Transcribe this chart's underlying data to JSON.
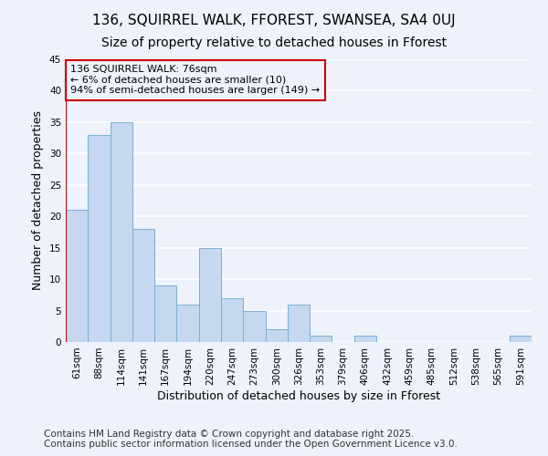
{
  "title_line1": "136, SQUIRREL WALK, FFOREST, SWANSEA, SA4 0UJ",
  "title_line2": "Size of property relative to detached houses in Fforest",
  "xlabel": "Distribution of detached houses by size in Fforest",
  "ylabel": "Number of detached properties",
  "categories": [
    "61sqm",
    "88sqm",
    "114sqm",
    "141sqm",
    "167sqm",
    "194sqm",
    "220sqm",
    "247sqm",
    "273sqm",
    "300sqm",
    "326sqm",
    "353sqm",
    "379sqm",
    "406sqm",
    "432sqm",
    "459sqm",
    "485sqm",
    "512sqm",
    "538sqm",
    "565sqm",
    "591sqm"
  ],
  "values": [
    21,
    33,
    35,
    18,
    9,
    6,
    15,
    7,
    5,
    2,
    6,
    1,
    0,
    1,
    0,
    0,
    0,
    0,
    0,
    0,
    1
  ],
  "bar_color": "#c5d8ef",
  "bar_edge_color": "#7bafd4",
  "highlight_color": "#cc0000",
  "annotation_text": "136 SQUIRREL WALK: 76sqm\n← 6% of detached houses are smaller (10)\n94% of semi-detached houses are larger (149) →",
  "annotation_box_color": "#cc0000",
  "ylim": [
    0,
    45
  ],
  "yticks": [
    0,
    5,
    10,
    15,
    20,
    25,
    30,
    35,
    40,
    45
  ],
  "footer_line1": "Contains HM Land Registry data © Crown copyright and database right 2025.",
  "footer_line2": "Contains public sector information licensed under the Open Government Licence v3.0.",
  "bg_color": "#edf2fb",
  "grid_color": "#ffffff",
  "title_fontsize": 11,
  "subtitle_fontsize": 10,
  "axis_label_fontsize": 9,
  "tick_fontsize": 7.5,
  "annotation_fontsize": 8,
  "footer_fontsize": 7.5
}
